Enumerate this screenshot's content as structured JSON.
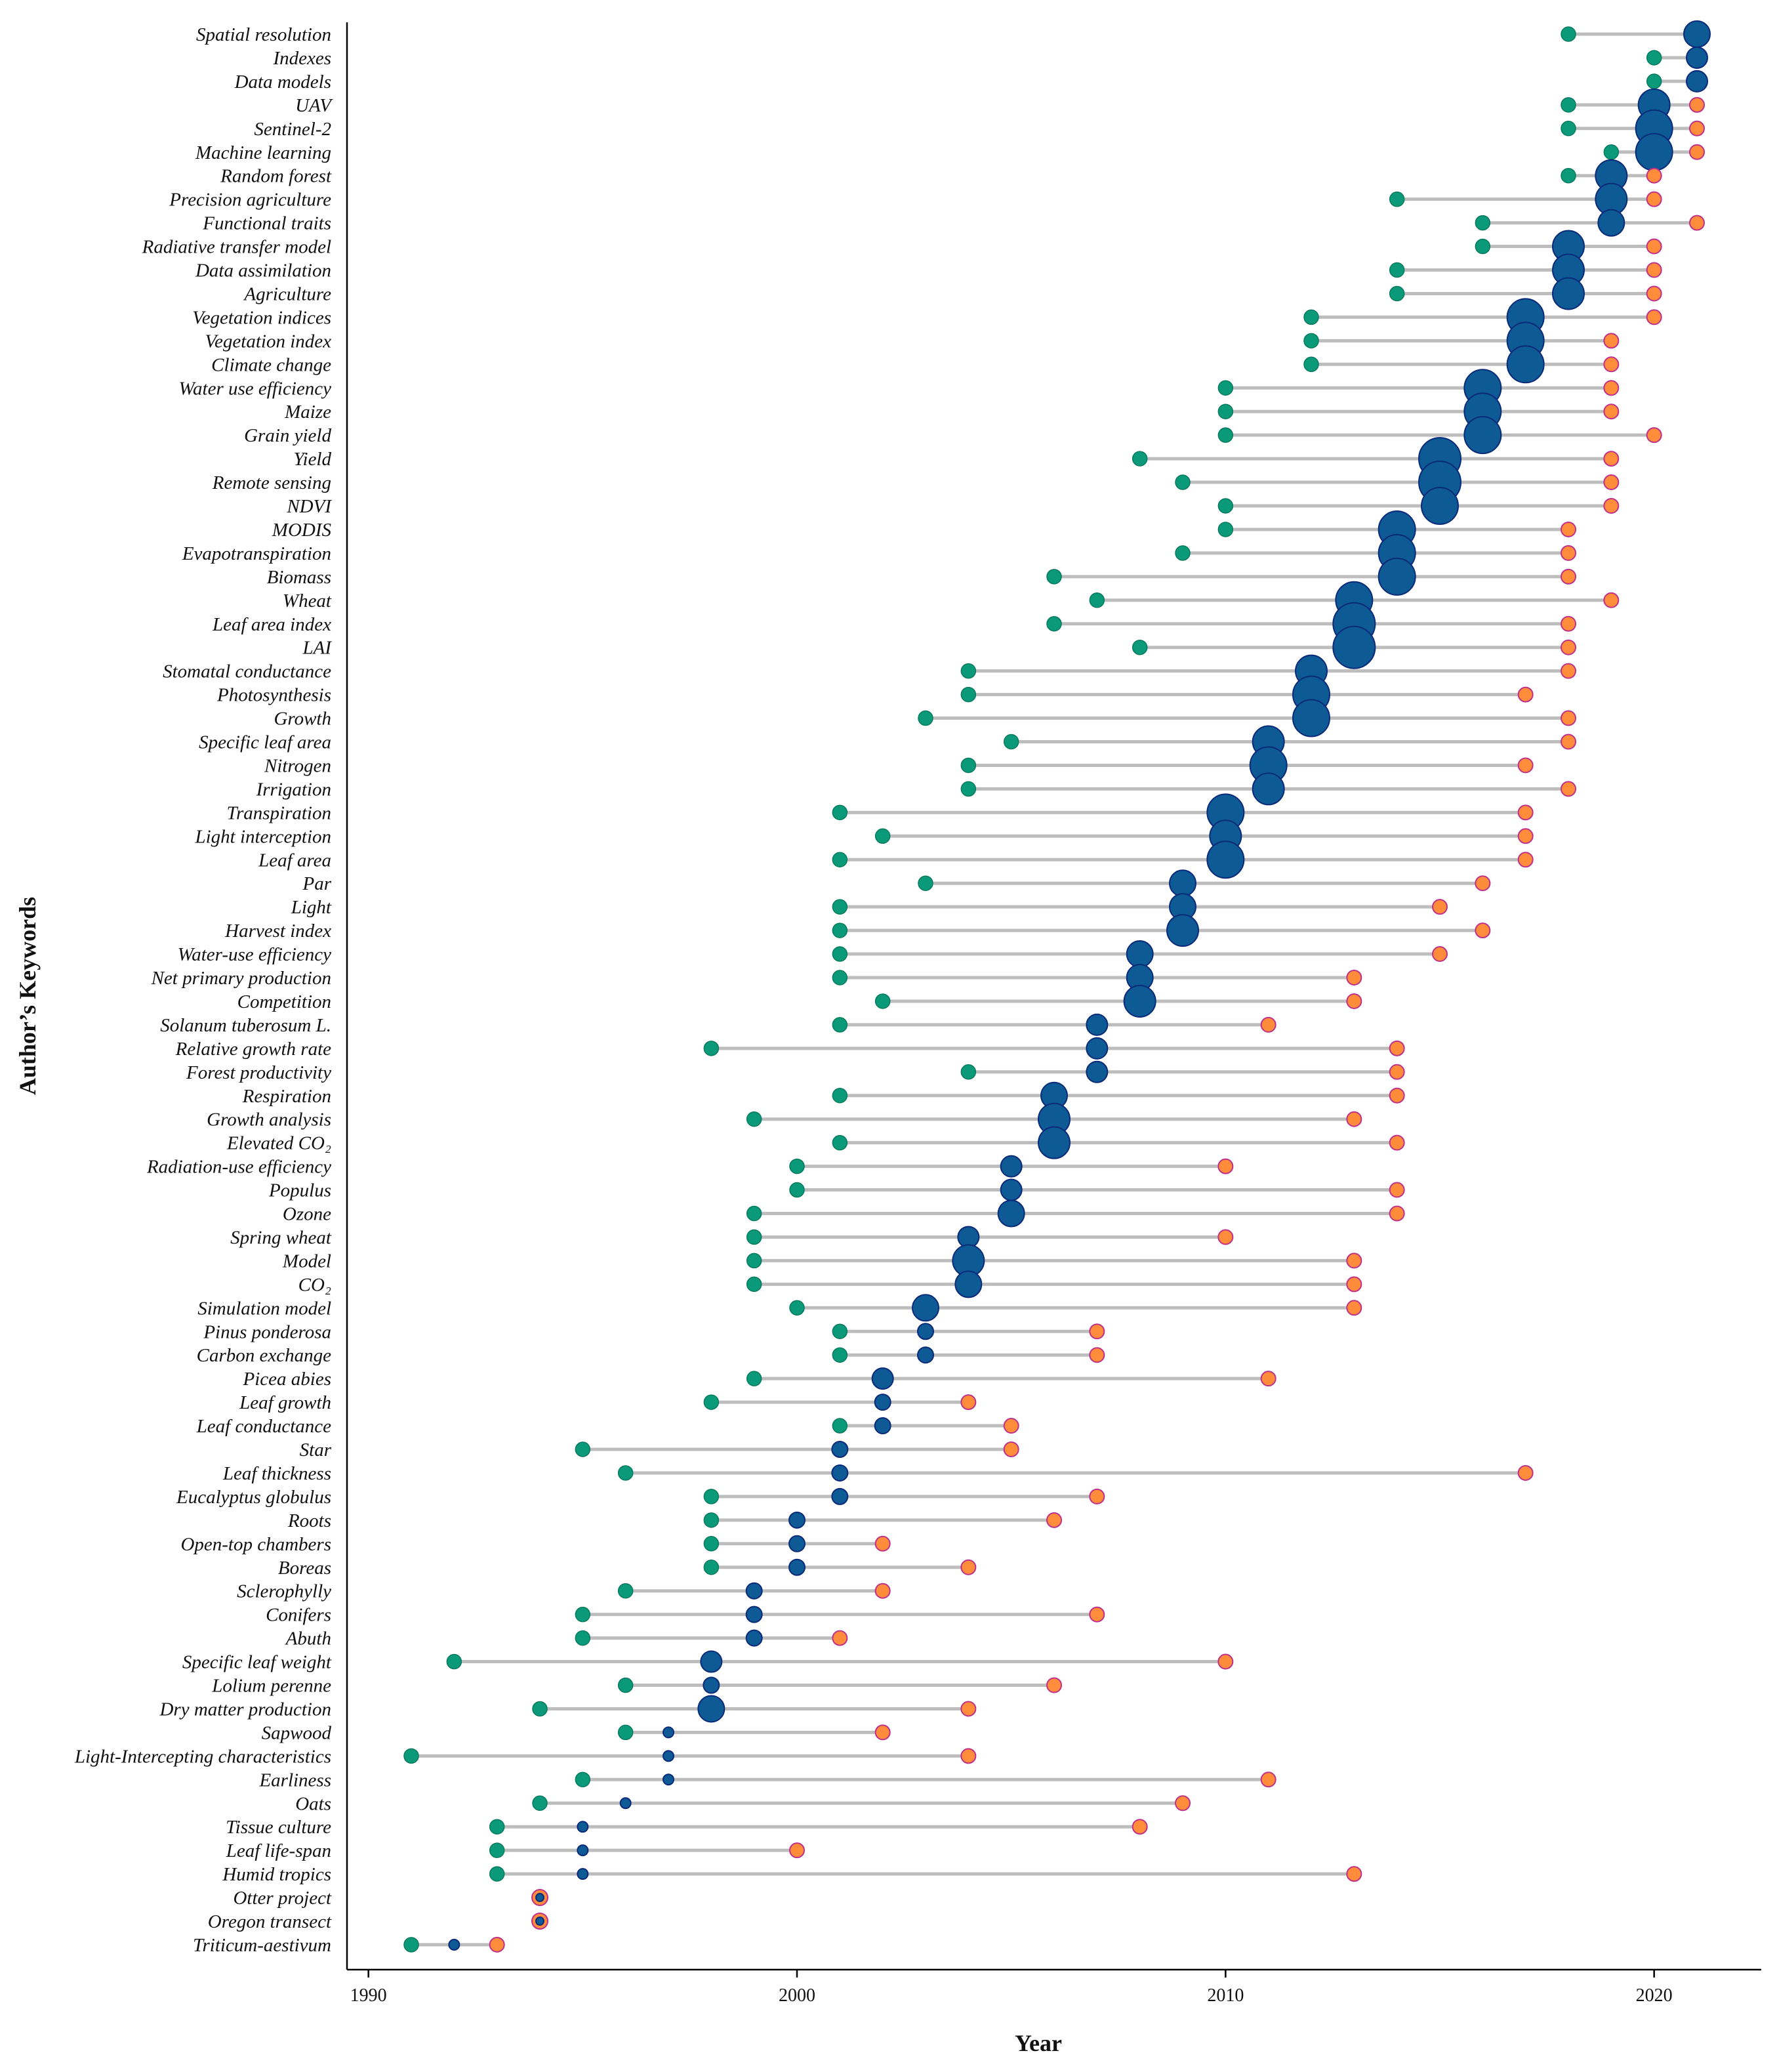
{
  "chart_data": {
    "type": "scatter",
    "subtype": "dumbbell-timeline",
    "xlabel": "Year",
    "ylabel": "Author’s Keywords",
    "xlim": [
      1989.5,
      2022.5
    ],
    "xticks": [
      1990,
      2000,
      2010,
      2020
    ],
    "grid": false,
    "legend": "none",
    "colors": {
      "segment": "#bdbdbd",
      "start": "#0a9a7a",
      "end": "#ff8c3a",
      "end_outline": "#c0308a",
      "peak": "#0e5a94",
      "peak_outline": "#0a2a7a"
    },
    "items": [
      {
        "keyword": "Spatial resolution",
        "start": 2018,
        "peak": 2021,
        "end": 2021,
        "size": 2
      },
      {
        "keyword": "Indexes",
        "start": 2020,
        "peak": 2021,
        "end": 2021,
        "size": 1
      },
      {
        "keyword": "Data models",
        "start": 2020,
        "peak": 2021,
        "end": 2021,
        "size": 1
      },
      {
        "keyword": "UAV",
        "start": 2018,
        "peak": 2020,
        "end": 2021,
        "size": 3
      },
      {
        "keyword": "Sentinel-2",
        "start": 2018,
        "peak": 2020,
        "end": 2021,
        "size": 4
      },
      {
        "keyword": "Machine learning",
        "start": 2019,
        "peak": 2020,
        "end": 2021,
        "size": 4
      },
      {
        "keyword": "Random forest",
        "start": 2018,
        "peak": 2019,
        "end": 2020,
        "size": 3
      },
      {
        "keyword": "Precision agriculture",
        "start": 2014,
        "peak": 2019,
        "end": 2020,
        "size": 3
      },
      {
        "keyword": "Functional traits",
        "start": 2016,
        "peak": 2019,
        "end": 2021,
        "size": 2
      },
      {
        "keyword": "Radiative transfer model",
        "start": 2016,
        "peak": 2018,
        "end": 2020,
        "size": 3
      },
      {
        "keyword": "Data assimilation",
        "start": 2014,
        "peak": 2018,
        "end": 2020,
        "size": 3
      },
      {
        "keyword": "Agriculture",
        "start": 2014,
        "peak": 2018,
        "end": 2020,
        "size": 3
      },
      {
        "keyword": "Vegetation indices",
        "start": 2012,
        "peak": 2017,
        "end": 2020,
        "size": 4
      },
      {
        "keyword": "Vegetation index",
        "start": 2012,
        "peak": 2017,
        "end": 2019,
        "size": 4
      },
      {
        "keyword": "Climate change",
        "start": 2012,
        "peak": 2017,
        "end": 2019,
        "size": 4
      },
      {
        "keyword": "Water use efficiency",
        "start": 2010,
        "peak": 2016,
        "end": 2019,
        "size": 4
      },
      {
        "keyword": "Maize",
        "start": 2010,
        "peak": 2016,
        "end": 2019,
        "size": 4
      },
      {
        "keyword": "Grain yield",
        "start": 2010,
        "peak": 2016,
        "end": 2020,
        "size": 4
      },
      {
        "keyword": "Yield",
        "start": 2008,
        "peak": 2015,
        "end": 2019,
        "size": 5
      },
      {
        "keyword": "Remote sensing",
        "start": 2009,
        "peak": 2015,
        "end": 2019,
        "size": 5
      },
      {
        "keyword": "NDVI",
        "start": 2010,
        "peak": 2015,
        "end": 2019,
        "size": 4
      },
      {
        "keyword": "MODIS",
        "start": 2010,
        "peak": 2014,
        "end": 2018,
        "size": 4
      },
      {
        "keyword": "Evapotranspiration",
        "start": 2009,
        "peak": 2014,
        "end": 2018,
        "size": 4
      },
      {
        "keyword": "Biomass",
        "start": 2006,
        "peak": 2014,
        "end": 2018,
        "size": 4
      },
      {
        "keyword": "Wheat",
        "start": 2007,
        "peak": 2013,
        "end": 2019,
        "size": 4
      },
      {
        "keyword": "Leaf area index",
        "start": 2006,
        "peak": 2013,
        "end": 2018,
        "size": 5
      },
      {
        "keyword": "LAI",
        "start": 2008,
        "peak": 2013,
        "end": 2018,
        "size": 5
      },
      {
        "keyword": "Stomatal conductance",
        "start": 2004,
        "peak": 2012,
        "end": 2018,
        "size": 3
      },
      {
        "keyword": "Photosynthesis",
        "start": 2004,
        "peak": 2012,
        "end": 2017,
        "size": 4
      },
      {
        "keyword": "Growth",
        "start": 2003,
        "peak": 2012,
        "end": 2018,
        "size": 4
      },
      {
        "keyword": "Specific leaf area",
        "start": 2005,
        "peak": 2011,
        "end": 2018,
        "size": 3
      },
      {
        "keyword": "Nitrogen",
        "start": 2004,
        "peak": 2011,
        "end": 2017,
        "size": 4
      },
      {
        "keyword": "Irrigation",
        "start": 2004,
        "peak": 2011,
        "end": 2018,
        "size": 3
      },
      {
        "keyword": "Transpiration",
        "start": 2001,
        "peak": 2010,
        "end": 2017,
        "size": 4
      },
      {
        "keyword": "Light interception",
        "start": 2002,
        "peak": 2010,
        "end": 2017,
        "size": 3
      },
      {
        "keyword": "Leaf area",
        "start": 2001,
        "peak": 2010,
        "end": 2017,
        "size": 4
      },
      {
        "keyword": "Par",
        "start": 2003,
        "peak": 2009,
        "end": 2016,
        "size": 2
      },
      {
        "keyword": "Light",
        "start": 2001,
        "peak": 2009,
        "end": 2015,
        "size": 2
      },
      {
        "keyword": "Harvest index",
        "start": 2001,
        "peak": 2009,
        "end": 2016,
        "size": 3
      },
      {
        "keyword": "Water-use efficiency",
        "start": 2001,
        "peak": 2008,
        "end": 2015,
        "size": 2
      },
      {
        "keyword": "Net primary production",
        "start": 2001,
        "peak": 2008,
        "end": 2013,
        "size": 2
      },
      {
        "keyword": "Competition",
        "start": 2002,
        "peak": 2008,
        "end": 2013,
        "size": 3
      },
      {
        "keyword": "Solanum tuberosum L.",
        "start": 2001,
        "peak": 2007,
        "end": 2011,
        "size": 1
      },
      {
        "keyword": "Relative growth rate",
        "start": 1998,
        "peak": 2007,
        "end": 2014,
        "size": 1
      },
      {
        "keyword": "Forest productivity",
        "start": 2004,
        "peak": 2007,
        "end": 2014,
        "size": 1
      },
      {
        "keyword": "Respiration",
        "start": 2001,
        "peak": 2006,
        "end": 2014,
        "size": 2
      },
      {
        "keyword": "Growth analysis",
        "start": 1999,
        "peak": 2006,
        "end": 2013,
        "size": 3
      },
      {
        "keyword": "Elevated CO₂",
        "start": 2001,
        "peak": 2006,
        "end": 2014,
        "size": 3
      },
      {
        "keyword": "Radiation-use efficiency",
        "start": 2000,
        "peak": 2005,
        "end": 2010,
        "size": 1
      },
      {
        "keyword": "Populus",
        "start": 2000,
        "peak": 2005,
        "end": 2014,
        "size": 1
      },
      {
        "keyword": "Ozone",
        "start": 1999,
        "peak": 2005,
        "end": 2014,
        "size": 2
      },
      {
        "keyword": "Spring wheat",
        "start": 1999,
        "peak": 2004,
        "end": 2010,
        "size": 1
      },
      {
        "keyword": "Model",
        "start": 1999,
        "peak": 2004,
        "end": 2013,
        "size": 3
      },
      {
        "keyword": "CO₂",
        "start": 1999,
        "peak": 2004,
        "end": 2013,
        "size": 2
      },
      {
        "keyword": "Simulation model",
        "start": 2000,
        "peak": 2003,
        "end": 2013,
        "size": 2
      },
      {
        "keyword": "Pinus ponderosa",
        "start": 2001,
        "peak": 2003,
        "end": 2007,
        "size": 0
      },
      {
        "keyword": "Carbon exchange",
        "start": 2001,
        "peak": 2003,
        "end": 2007,
        "size": 0
      },
      {
        "keyword": "Picea abies",
        "start": 1999,
        "peak": 2002,
        "end": 2011,
        "size": 1
      },
      {
        "keyword": "Leaf growth",
        "start": 1998,
        "peak": 2002,
        "end": 2004,
        "size": 0
      },
      {
        "keyword": "Leaf conductance",
        "start": 2001,
        "peak": 2002,
        "end": 2005,
        "size": 0
      },
      {
        "keyword": "Star",
        "start": 1995,
        "peak": 2001,
        "end": 2005,
        "size": 0
      },
      {
        "keyword": "Leaf thickness",
        "start": 1996,
        "peak": 2001,
        "end": 2017,
        "size": 0
      },
      {
        "keyword": "Eucalyptus globulus",
        "start": 1998,
        "peak": 2001,
        "end": 2007,
        "size": 0
      },
      {
        "keyword": "Roots",
        "start": 1998,
        "peak": 2000,
        "end": 2006,
        "size": 0
      },
      {
        "keyword": "Open-top chambers",
        "start": 1998,
        "peak": 2000,
        "end": 2002,
        "size": 0
      },
      {
        "keyword": "Boreas",
        "start": 1998,
        "peak": 2000,
        "end": 2004,
        "size": 0
      },
      {
        "keyword": "Sclerophylly",
        "start": 1996,
        "peak": 1999,
        "end": 2002,
        "size": 0
      },
      {
        "keyword": "Conifers",
        "start": 1995,
        "peak": 1999,
        "end": 2007,
        "size": 0
      },
      {
        "keyword": "Abuth",
        "start": 1995,
        "peak": 1999,
        "end": 2001,
        "size": 0
      },
      {
        "keyword": "Specific leaf weight",
        "start": 1992,
        "peak": 1998,
        "end": 2010,
        "size": 1
      },
      {
        "keyword": "Lolium perenne",
        "start": 1996,
        "peak": 1998,
        "end": 2006,
        "size": 0
      },
      {
        "keyword": "Dry matter production",
        "start": 1994,
        "peak": 1998,
        "end": 2004,
        "size": 2
      },
      {
        "keyword": "Sapwood",
        "start": 1996,
        "peak": 1997,
        "end": 2002,
        "size": -1
      },
      {
        "keyword": "Light-Intercepting characteristics",
        "start": 1991,
        "peak": 1997,
        "end": 2004,
        "size": -1
      },
      {
        "keyword": "Earliness",
        "start": 1995,
        "peak": 1997,
        "end": 2011,
        "size": -1
      },
      {
        "keyword": "Oats",
        "start": 1994,
        "peak": 1996,
        "end": 2009,
        "size": -1
      },
      {
        "keyword": "Tissue culture",
        "start": 1993,
        "peak": 1995,
        "end": 2008,
        "size": -1
      },
      {
        "keyword": "Leaf life-span",
        "start": 1993,
        "peak": 1995,
        "end": 2000,
        "size": -1
      },
      {
        "keyword": "Humid tropics",
        "start": 1993,
        "peak": 1995,
        "end": 2013,
        "size": -1
      },
      {
        "keyword": "Otter project",
        "start": 1994,
        "peak": 1994,
        "end": 1994,
        "size": 0
      },
      {
        "keyword": "Oregon transect",
        "start": 1994,
        "peak": 1994,
        "end": 1994,
        "size": 0
      },
      {
        "keyword": "Triticum-aestivum",
        "start": 1991,
        "peak": 1992,
        "end": 1993,
        "size": -1
      }
    ]
  }
}
